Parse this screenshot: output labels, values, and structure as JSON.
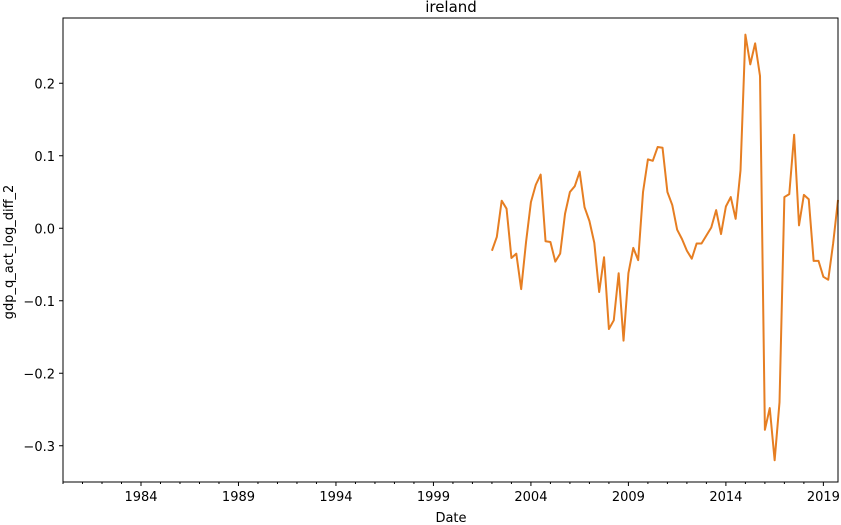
{
  "chart_data": {
    "type": "line",
    "title": "ireland",
    "xlabel": "Date",
    "ylabel": "gdp_q_act_log_diff_2",
    "xlim": [
      1980.0,
      2019.75
    ],
    "ylim": [
      -0.35,
      0.29
    ],
    "grid": false,
    "legend": "none",
    "x_ticks": [
      1984,
      1989,
      1994,
      1999,
      2004,
      2009,
      2014,
      2019
    ],
    "x_ticklabels": [
      "1984",
      "1989",
      "1994",
      "1999",
      "2004",
      "2009",
      "2014",
      "2019"
    ],
    "x_minor_step": 1,
    "y_ticks": [
      -0.3,
      -0.2,
      -0.1,
      0.0,
      0.1,
      0.2
    ],
    "y_ticklabels": [
      "−0.3",
      "−0.2",
      "−0.1",
      "0.0",
      "0.1",
      "0.2"
    ],
    "series": [
      {
        "color": "#e67e22",
        "x": [
          2002.0,
          2002.25,
          2002.5,
          2002.75,
          2003.0,
          2003.25,
          2003.5,
          2003.75,
          2004.0,
          2004.25,
          2004.5,
          2004.75,
          2005.0,
          2005.25,
          2005.5,
          2005.75,
          2006.0,
          2006.25,
          2006.5,
          2006.75,
          2007.0,
          2007.25,
          2007.5,
          2007.75,
          2008.0,
          2008.25,
          2008.5,
          2008.75,
          2009.0,
          2009.25,
          2009.5,
          2009.75,
          2010.0,
          2010.25,
          2010.5,
          2010.75,
          2011.0,
          2011.25,
          2011.5,
          2011.75,
          2012.0,
          2012.25,
          2012.5,
          2012.75,
          2013.0,
          2013.25,
          2013.5,
          2013.75,
          2014.0,
          2014.25,
          2014.5,
          2014.75,
          2015.0,
          2015.25,
          2015.5,
          2015.75,
          2016.0,
          2016.25,
          2016.5,
          2016.75,
          2017.0,
          2017.25,
          2017.5,
          2017.75,
          2018.0,
          2018.25,
          2018.5,
          2018.75,
          2019.0,
          2019.25,
          2019.5,
          2019.75
        ],
        "y": [
          -0.031,
          -0.012,
          0.038,
          0.027,
          -0.041,
          -0.035,
          -0.084,
          -0.019,
          0.036,
          0.06,
          0.074,
          -0.018,
          -0.019,
          -0.046,
          -0.035,
          0.02,
          0.05,
          0.058,
          0.078,
          0.029,
          0.01,
          -0.02,
          -0.088,
          -0.04,
          -0.139,
          -0.127,
          -0.062,
          -0.155,
          -0.062,
          -0.027,
          -0.044,
          0.05,
          0.095,
          0.093,
          0.112,
          0.111,
          0.05,
          0.032,
          -0.002,
          -0.015,
          -0.031,
          -0.042,
          -0.021,
          -0.021,
          -0.01,
          0.001,
          0.025,
          -0.008,
          0.03,
          0.043,
          0.013,
          0.08,
          0.267,
          0.226,
          0.255,
          0.21,
          -0.278,
          -0.248,
          -0.32,
          -0.24,
          0.043,
          0.047,
          0.129,
          0.004,
          0.046,
          0.04,
          -0.045,
          -0.045,
          -0.067,
          -0.071,
          -0.021,
          0.039
        ]
      }
    ]
  }
}
